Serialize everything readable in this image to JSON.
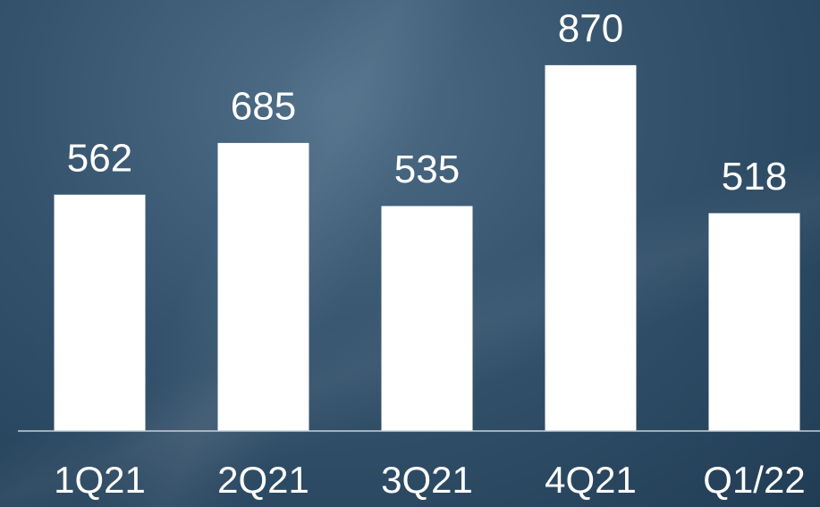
{
  "chart_data": {
    "type": "bar",
    "categories": [
      "1Q21",
      "2Q21",
      "3Q21",
      "4Q21",
      "Q1/22"
    ],
    "values": [
      562,
      685,
      535,
      870,
      518
    ],
    "color": "#ffffff",
    "ylim": [
      0,
      1025
    ]
  }
}
